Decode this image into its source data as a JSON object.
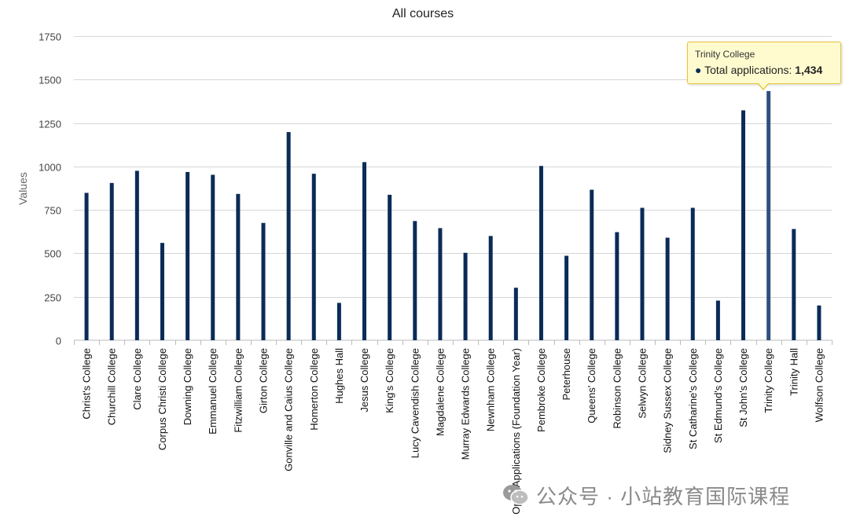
{
  "chart_data": {
    "type": "bar",
    "title": "All courses",
    "xlabel": "",
    "ylabel": "Values",
    "ylim": [
      0,
      1750
    ],
    "yticks": [
      0,
      250,
      500,
      750,
      1000,
      1250,
      1500,
      1750
    ],
    "grid": true,
    "legend": "none",
    "categories": [
      "Christ's College",
      "Churchill College",
      "Clare College",
      "Corpus Christi College",
      "Downing College",
      "Emmanuel College",
      "Fitzwilliam College",
      "Girton College",
      "Gonville and Caius College",
      "Homerton College",
      "Hughes Hall",
      "Jesus College",
      "King's College",
      "Lucy Cavendish College",
      "Magdalene College",
      "Murray Edwards College",
      "Newnham College",
      "Open Applications (Foundation Year)",
      "Pembroke College",
      "Peterhouse",
      "Queens' College",
      "Robinson College",
      "Selwyn College",
      "Sidney Sussex College",
      "St Catharine's College",
      "St Edmund's College",
      "St John's College",
      "Trinity College",
      "Trinity Hall",
      "Wolfson College"
    ],
    "series": [
      {
        "name": "Total applications",
        "values": [
          848,
          905,
          975,
          560,
          968,
          952,
          842,
          675,
          1198,
          958,
          215,
          1025,
          837,
          686,
          645,
          503,
          600,
          302,
          1003,
          486,
          866,
          622,
          762,
          590,
          762,
          228,
          1323,
          1434,
          640,
          200
        ]
      }
    ],
    "colors": {
      "bar": "#0b2b57",
      "bar_highlight": "#2f4f7f"
    },
    "highlight_index": 27
  },
  "tooltip": {
    "title": "Trinity College",
    "bullet": "●",
    "label": "Total applications: ",
    "value": "1,434"
  },
  "watermark": {
    "text": "公众号 · 小站教育国际课程",
    "icon": "wechat-logo-icon"
  }
}
